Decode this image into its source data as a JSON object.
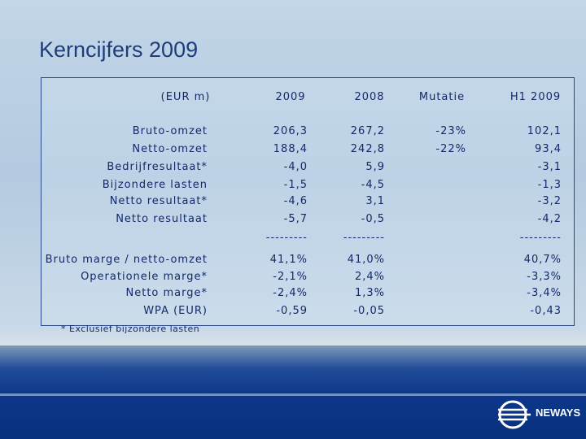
{
  "slide": {
    "title": "Kerncijfers 2009",
    "table": {
      "header": {
        "label": "(EUR m)",
        "y2009": "2009",
        "y2008": "2008",
        "mutatie": "Mutatie",
        "h1": "H1 2009"
      },
      "rows": [
        {
          "label": "Bruto-omzet",
          "y2009": "206,3",
          "y2008": "267,2",
          "mutatie": "-23%",
          "h1": "102,1"
        },
        {
          "label": "Netto-omzet",
          "y2009": "188,4",
          "y2008": "242,8",
          "mutatie": "-22%",
          "h1": "93,4"
        },
        {
          "label": "Bedrijfresultaat*",
          "y2009": "-4,0",
          "y2008": "5,9",
          "h1": "-3,1"
        },
        {
          "label": "Bijzondere lasten",
          "y2009": "-1,5",
          "y2008": "-4,5",
          "h1": "-1,3"
        },
        {
          "label": "Netto resultaat*",
          "y2009": "-4,6",
          "y2008": "3,1",
          "h1": "-3,2"
        },
        {
          "label": "Netto resultaat",
          "y2009": "-5,7",
          "y2008": "-0,5",
          "h1": "-4,2"
        },
        {
          "y2009": "---------",
          "y2008": "---------",
          "h1": "---------"
        },
        {
          "label": "Bruto marge / netto-omzet",
          "y2009": "41,1%",
          "y2008": "41,0%",
          "h1": "40,7%"
        },
        {
          "label": "Operationele marge*",
          "y2009": "-2,1%",
          "y2008": "2,4%",
          "h1": "-3,3%"
        },
        {
          "label": "Netto marge*",
          "y2009": "-2,4%",
          "y2008": "1,3%",
          "h1": "-3,4%"
        },
        {
          "label": "WPA (EUR)",
          "y2009": "-0,59",
          "y2008": "-0,05",
          "h1": "-0,43"
        }
      ],
      "footnote": "* Exclusief bijzondere lasten"
    },
    "logo": "NEWAYS"
  }
}
